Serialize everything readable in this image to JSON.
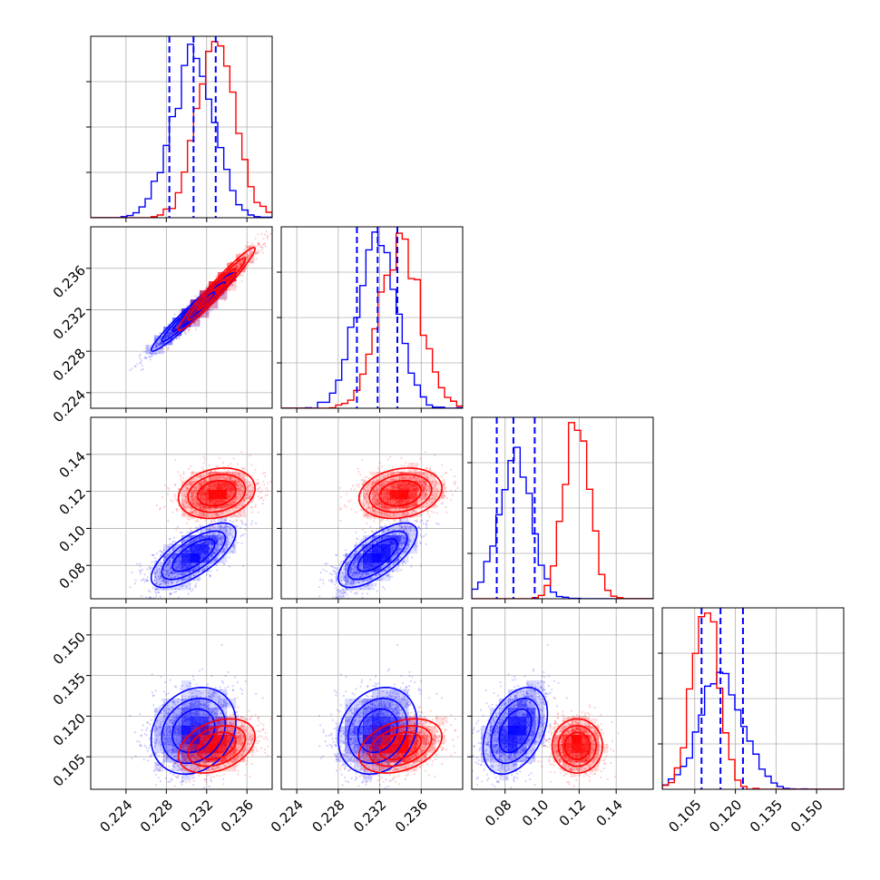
{
  "chart_data": {
    "type": "corner",
    "grid": true,
    "colors": {
      "blue": "#0000ff",
      "red": "#ff0000"
    },
    "series": [
      {
        "color": "#0000ff",
        "mean": [
          0.2307,
          0.2318,
          0.0855,
          0.1146
        ],
        "std": [
          0.0021,
          0.0019,
          0.0087,
          0.008
        ],
        "corr": [
          [
            1,
            0.97,
            0.7,
            0.2
          ],
          [
            0.97,
            1,
            0.7,
            0.2
          ],
          [
            0.7,
            0.7,
            1,
            0.4
          ],
          [
            0.2,
            0.2,
            0.4,
            1
          ]
        ],
        "quantile_lines": [
          [
            0.2283,
            0.2307,
            0.2329
          ],
          [
            0.2298,
            0.2318,
            0.2337
          ],
          [
            0.0755,
            0.0845,
            0.096
          ],
          [
            0.1075,
            0.1145,
            0.1228
          ]
        ]
      },
      {
        "color": "#ff0000",
        "mean": [
          0.233,
          0.234,
          0.119,
          0.109
        ],
        "std": [
          0.0019,
          0.002,
          0.0068,
          0.005
        ],
        "corr": [
          [
            1,
            0.97,
            0.2,
            0.35
          ],
          [
            0.97,
            1,
            0.2,
            0.35
          ],
          [
            0.2,
            0.2,
            1,
            0.0
          ],
          [
            0.35,
            0.35,
            0.0,
            1
          ]
        ],
        "quantile_lines": []
      }
    ],
    "parameters": [
      {
        "range": [
          0.2205,
          0.2385
        ],
        "ticks": [
          "0.224",
          "0.228",
          "0.232",
          "0.236"
        ],
        "tick_values": [
          0.224,
          0.228,
          0.232,
          0.236
        ]
      },
      {
        "range": [
          0.2225,
          0.24
        ],
        "ticks": [
          "0.224",
          "0.228",
          "0.232",
          "0.236"
        ],
        "tick_values": [
          0.224,
          0.228,
          0.232,
          0.236
        ]
      },
      {
        "range": [
          0.062,
          0.16
        ],
        "ticks": [
          "0.08",
          "0.10",
          "0.12",
          "0.14"
        ],
        "tick_values": [
          0.08,
          0.1,
          0.12,
          0.14
        ]
      },
      {
        "range": [
          0.093,
          0.16
        ],
        "ticks": [
          "0.105",
          "0.120",
          "0.135",
          "0.150"
        ],
        "tick_values": [
          0.105,
          0.12,
          0.135,
          0.15
        ]
      }
    ]
  }
}
